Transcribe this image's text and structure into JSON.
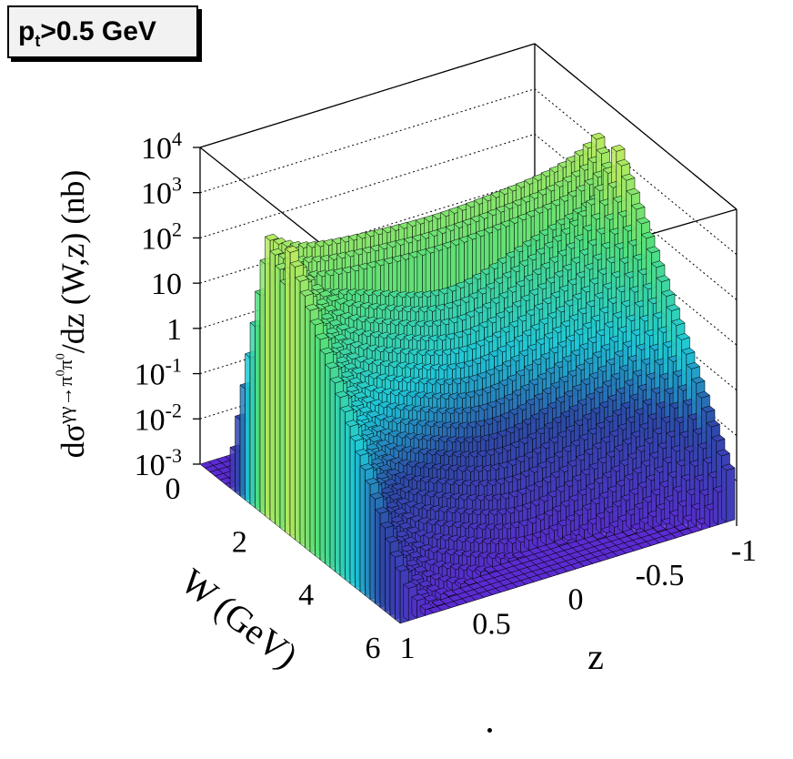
{
  "badge": {
    "main": "p",
    "sub": "t",
    "rest": ">0.5 GeV"
  },
  "chart_data": {
    "type": "bar3d",
    "title": "p_t>0.5 GeV",
    "zlabel": "dσ^{γγ→π0π0}/dz (W,z) (nb)",
    "xlabel": "W (GeV)",
    "ylabel": "z",
    "w_range": [
      0,
      6
    ],
    "z_range": [
      -1,
      1
    ],
    "value_range": [
      0.001,
      10000
    ],
    "log_scale": true,
    "w_ticks": [
      "0",
      "2",
      "4",
      "6"
    ],
    "z_ticks": [
      "1",
      "0.5",
      "0",
      "-0.5",
      "-1"
    ],
    "value_ticks": [
      "10^-3",
      "10^-2",
      "10^-1",
      "1",
      "10",
      "10^2",
      "10^3",
      "10^4"
    ],
    "grid": true,
    "surface_samples": [
      {
        "W": 1.0,
        "z": 0.0,
        "value": 0.001
      },
      {
        "W": 1.5,
        "z": 0.0,
        "value": 100
      },
      {
        "W": 2.0,
        "z": 0.0,
        "value": 500
      },
      {
        "W": 3.0,
        "z": 0.0,
        "value": 10
      },
      {
        "W": 4.0,
        "z": 0.0,
        "value": 0.01
      },
      {
        "W": 6.0,
        "z": 0.0,
        "value": 0.001
      },
      {
        "W": 1.5,
        "z": 1.0,
        "value": 1
      },
      {
        "W": 1.5,
        "z": -1.0,
        "value": 1
      },
      {
        "W": 4.0,
        "z": 1.0,
        "value": 0.1
      },
      {
        "W": 4.0,
        "z": -1.0,
        "value": 0.1
      }
    ]
  },
  "zticks": [
    {
      "base": "10",
      "exp": "4"
    },
    {
      "base": "10",
      "exp": "3"
    },
    {
      "base": "10",
      "exp": "2"
    },
    {
      "base": "10",
      "exp": ""
    },
    {
      "base": "1",
      "exp": ""
    },
    {
      "base": "10",
      "exp": "-1"
    },
    {
      "base": "10",
      "exp": "-2"
    },
    {
      "base": "10",
      "exp": "-3"
    }
  ],
  "wticks": [
    "0",
    "2",
    "4",
    "6"
  ],
  "zaxis_ticks": [
    "1",
    "0.5",
    "0",
    "-0.5",
    "-1"
  ],
  "wlabel": "W (GeV)",
  "zlabel_short": "z",
  "ylabel_parts": {
    "d": "dσ",
    "sup": "γγ→π",
    "sup0a": "0",
    "pi2": "π",
    "sup0b": "0",
    "rest": "/dz  (W,z) (nb)"
  }
}
